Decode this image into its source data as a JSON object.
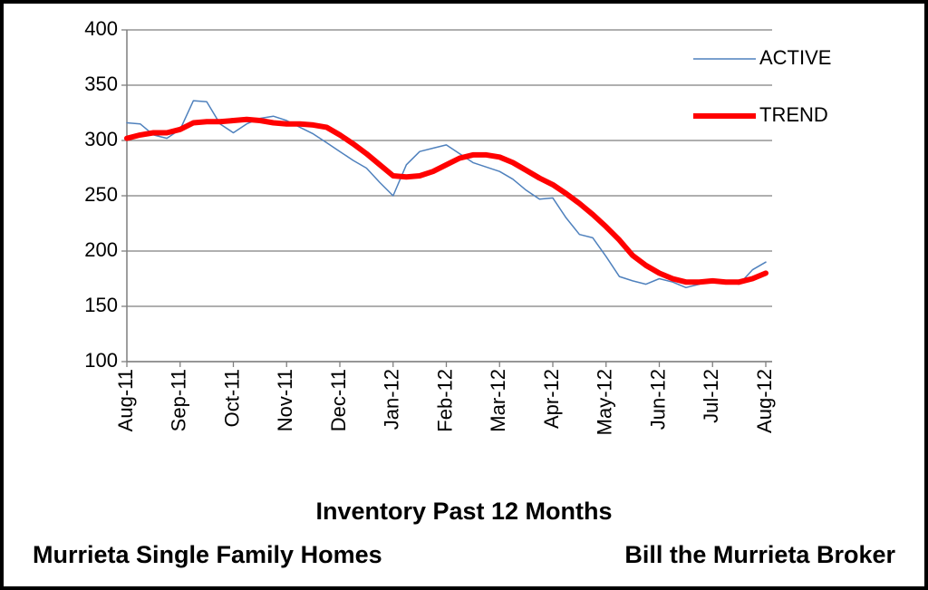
{
  "chart_data": {
    "type": "line",
    "xlabel": "Inventory Past 12 Months",
    "footer_left": "Murrieta Single Family Homes",
    "footer_right": "Bill the Murrieta Broker",
    "categories": [
      "Aug-11",
      null,
      null,
      null,
      "Sep-11",
      null,
      null,
      null,
      "Oct-11",
      null,
      null,
      null,
      "Nov-11",
      null,
      null,
      null,
      "Dec-11",
      null,
      null,
      null,
      "Jan-12",
      null,
      null,
      null,
      "Feb-12",
      null,
      null,
      null,
      "Mar-12",
      null,
      null,
      null,
      "Apr-12",
      null,
      null,
      null,
      "May-12",
      null,
      null,
      null,
      "Jun-12",
      null,
      null,
      null,
      "Jul-12",
      null,
      null,
      null,
      "Aug-12"
    ],
    "series": [
      {
        "name": "ACTIVE",
        "color": "#4f81bd",
        "width": 1.5,
        "values": [
          316,
          315,
          305,
          302,
          310,
          336,
          335,
          315,
          307,
          315,
          320,
          322,
          318,
          312,
          306,
          298,
          290,
          282,
          275,
          262,
          250,
          278,
          290,
          293,
          296,
          288,
          280,
          276,
          272,
          265,
          255,
          247,
          248,
          230,
          215,
          212,
          195,
          177,
          173,
          170,
          175,
          172,
          167,
          170,
          174,
          172,
          170,
          183,
          190
        ]
      },
      {
        "name": "TREND",
        "color": "#ff0000",
        "width": 6,
        "values": [
          302,
          305,
          307,
          307,
          310,
          316,
          317,
          317,
          318,
          319,
          318,
          316,
          315,
          315,
          314,
          312,
          305,
          297,
          288,
          278,
          268,
          267,
          268,
          272,
          278,
          284,
          287,
          287,
          285,
          280,
          273,
          266,
          260,
          252,
          243,
          233,
          222,
          210,
          196,
          187,
          180,
          175,
          172,
          172,
          173,
          172,
          172,
          175,
          180
        ]
      }
    ],
    "ylim": [
      100,
      400
    ],
    "yticks": [
      100,
      150,
      200,
      250,
      300,
      350,
      400
    ],
    "grid": true,
    "legend": "top-right"
  }
}
